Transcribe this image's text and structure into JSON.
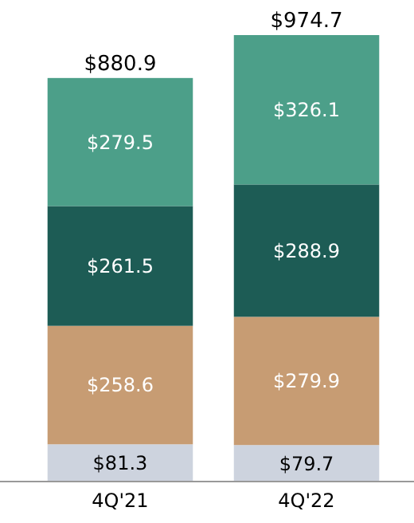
{
  "chart_data": {
    "type": "bar",
    "stacked": true,
    "categories": [
      "4Q'21",
      "4Q'22"
    ],
    "series": [
      {
        "color": "#cdd3de",
        "values": [
          81.3,
          79.7
        ],
        "value_labels": [
          "$81.3",
          "$79.7"
        ]
      },
      {
        "color": "#c79c73",
        "values": [
          258.6,
          279.9
        ],
        "value_labels": [
          "$258.6",
          "$279.9"
        ]
      },
      {
        "color": "#1d5c55",
        "values": [
          261.5,
          288.9
        ],
        "value_labels": [
          "$261.5",
          "$288.9"
        ]
      },
      {
        "color": "#4c9f89",
        "values": [
          279.5,
          326.1
        ],
        "value_labels": [
          "$279.5",
          "$326.1"
        ]
      }
    ],
    "totals": [
      "$880.9",
      "$974.7"
    ]
  }
}
